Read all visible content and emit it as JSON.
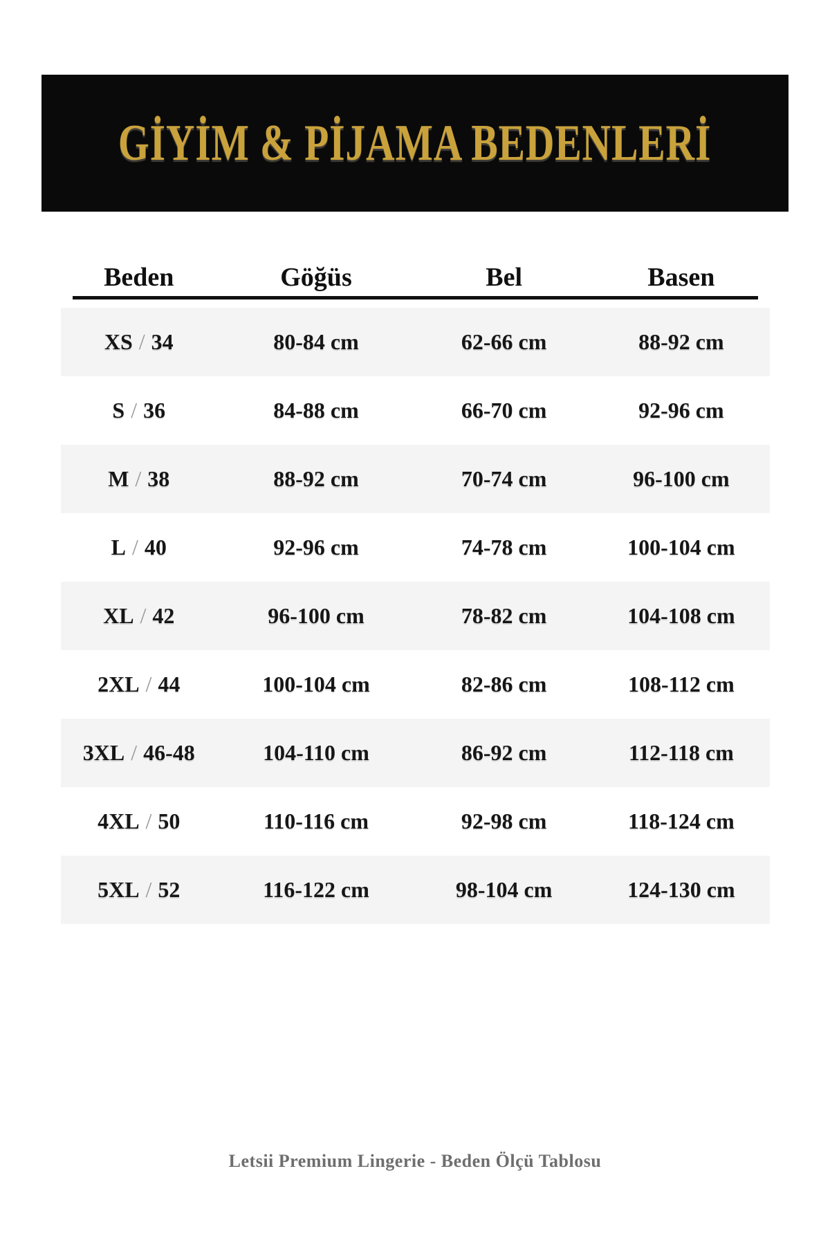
{
  "banner": {
    "bg_color": "#0a0a0a",
    "title_color": "#c9a23c"
  },
  "chart_data": {
    "type": "table",
    "title": "GİYİM & PİJAMA BEDENLERİ",
    "columns": [
      "Beden",
      "Göğüs",
      "Bel",
      "Basen"
    ],
    "separator": "/",
    "rows": [
      {
        "size": "XS",
        "eu": "34",
        "gogus": "80-84 cm",
        "bel": "62-66 cm",
        "basen": "88-92 cm"
      },
      {
        "size": "S",
        "eu": "36",
        "gogus": "84-88 cm",
        "bel": "66-70 cm",
        "basen": "92-96 cm"
      },
      {
        "size": "M",
        "eu": "38",
        "gogus": "88-92 cm",
        "bel": "70-74 cm",
        "basen": "96-100 cm"
      },
      {
        "size": "L",
        "eu": "40",
        "gogus": "92-96 cm",
        "bel": "74-78 cm",
        "basen": "100-104 cm"
      },
      {
        "size": "XL",
        "eu": "42",
        "gogus": "96-100 cm",
        "bel": "78-82 cm",
        "basen": "104-108 cm"
      },
      {
        "size": "2XL",
        "eu": "44",
        "gogus": "100-104 cm",
        "bel": "82-86 cm",
        "basen": "108-112 cm"
      },
      {
        "size": "3XL",
        "eu": "46-48",
        "gogus": "104-110 cm",
        "bel": "86-92 cm",
        "basen": "112-118 cm"
      },
      {
        "size": "4XL",
        "eu": "50",
        "gogus": "110-116 cm",
        "bel": "92-98 cm",
        "basen": "118-124 cm"
      },
      {
        "size": "5XL",
        "eu": "52",
        "gogus": "116-122 cm",
        "bel": "98-104 cm",
        "basen": "124-130 cm"
      }
    ],
    "layout": {
      "row_stripe_color": "#f4f4f4",
      "separator_color": "#979797",
      "header_rule_color": "#101010"
    }
  },
  "footer": {
    "text": "Letsii Premium Lingerie - Beden Ölçü Tablosu",
    "color": "#6e6e6e"
  }
}
